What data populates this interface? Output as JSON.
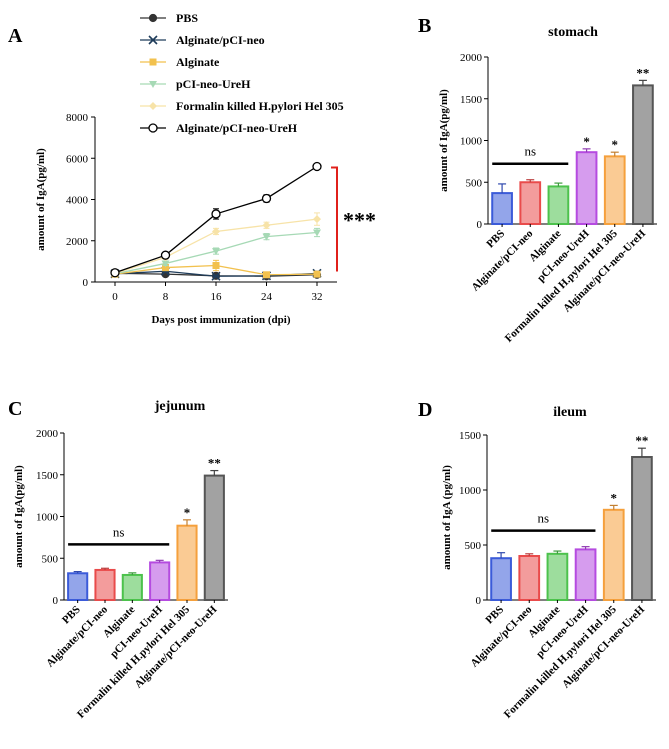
{
  "chart_data": [
    {
      "panel": "A",
      "type": "line",
      "title": "",
      "xlabel": "Days post immunization (dpi)",
      "ylabel": "amount of IgA(pg/ml)",
      "x": [
        0,
        8,
        16,
        24,
        32
      ],
      "xticks": [
        "0",
        "8",
        "16",
        "24",
        "32"
      ],
      "yticks": [
        "0",
        "2000",
        "4000",
        "6000",
        "8000"
      ],
      "ylim": [
        0,
        8000
      ],
      "annotation": "***",
      "series": [
        {
          "name": "PBS",
          "values": [
            420,
            380,
            300,
            280,
            350
          ],
          "errors": [
            40,
            40,
            40,
            40,
            40
          ],
          "color": "#333333",
          "marker": "filled-circle"
        },
        {
          "name": "Alginate/pCI-neo",
          "values": [
            400,
            520,
            280,
            300,
            420
          ],
          "errors": [
            40,
            60,
            40,
            40,
            40
          ],
          "color": "#1f3c5a",
          "marker": "x"
        },
        {
          "name": "Alginate",
          "values": [
            380,
            700,
            800,
            350,
            380
          ],
          "errors": [
            40,
            150,
            250,
            60,
            40
          ],
          "color": "#f2c14e",
          "marker": "square"
        },
        {
          "name": "pCI-neo-UreH",
          "values": [
            400,
            900,
            1500,
            2200,
            2400
          ],
          "errors": [
            40,
            100,
            150,
            150,
            200
          ],
          "color": "#a6d9b5",
          "marker": "triangle-down"
        },
        {
          "name": "Formalin killed H.pylori Hel 305",
          "values": [
            420,
            1200,
            2450,
            2750,
            3050
          ],
          "errors": [
            40,
            100,
            150,
            150,
            300
          ],
          "color": "#f7e3a8",
          "marker": "diamond"
        },
        {
          "name": "Alginate/pCI-neo-UreH",
          "values": [
            450,
            1300,
            3300,
            4050,
            5600
          ],
          "errors": [
            40,
            80,
            250,
            180,
            120
          ],
          "color": "#000000",
          "marker": "open-circle"
        }
      ]
    },
    {
      "panel": "B",
      "type": "bar",
      "title": "stomach",
      "xlabel": "",
      "ylabel": "amount of IgA(pg/ml)",
      "categories": [
        "PBS",
        "Alginate/pCI-neo",
        "Alginate",
        "pCI-neo-UreH",
        "Formalin killed H.pylori Hel 305",
        "Alginate/pCI-neo-UreH"
      ],
      "values": [
        370,
        500,
        450,
        860,
        810,
        1660
      ],
      "errors": [
        110,
        30,
        40,
        40,
        50,
        60
      ],
      "colors": [
        "#3b5bd9",
        "#e94b4b",
        "#4cc24c",
        "#b54be0",
        "#f5a03c",
        "#555555"
      ],
      "significance": [
        "",
        "",
        "",
        "*",
        "*",
        "**"
      ],
      "ns_label": "ns",
      "yticks": [
        "0",
        "500",
        "1000",
        "1500",
        "2000"
      ],
      "ylim": [
        0,
        2000
      ]
    },
    {
      "panel": "C",
      "type": "bar",
      "title": "jejunum",
      "xlabel": "",
      "ylabel": "amount of IgA(pg/ml)",
      "categories": [
        "PBS",
        "Alginate/pCI-neo",
        "Alginate",
        "pCI-neo-UreH",
        "Formalin killed H.pylori Hel 305",
        "Alginate/pCI-neo-UreH"
      ],
      "values": [
        320,
        360,
        300,
        450,
        890,
        1490
      ],
      "errors": [
        20,
        20,
        25,
        25,
        70,
        60
      ],
      "colors": [
        "#3b5bd9",
        "#e94b4b",
        "#4cc24c",
        "#b54be0",
        "#f5a03c",
        "#555555"
      ],
      "significance": [
        "",
        "",
        "",
        "",
        "*",
        "**"
      ],
      "ns_label": "ns",
      "yticks": [
        "0",
        "500",
        "1000",
        "1500",
        "2000"
      ],
      "ylim": [
        0,
        2000
      ]
    },
    {
      "panel": "D",
      "type": "bar",
      "title": "ileum",
      "xlabel": "",
      "ylabel": "amount of IgA (pg/ml)",
      "categories": [
        "PBS",
        "Alginate/pCI-neo",
        "Alginate",
        "pCI-neo-UreH",
        "Formalin killed H.pylori Hel 305",
        "Alginate/pCI-neo-UreH"
      ],
      "values": [
        380,
        400,
        420,
        460,
        820,
        1300
      ],
      "errors": [
        50,
        20,
        25,
        25,
        40,
        80
      ],
      "colors": [
        "#3b5bd9",
        "#e94b4b",
        "#4cc24c",
        "#b54be0",
        "#f5a03c",
        "#555555"
      ],
      "significance": [
        "",
        "",
        "",
        "",
        "*",
        "**"
      ],
      "ns_label": "ns",
      "yticks": [
        "0",
        "500",
        "1000",
        "1500"
      ],
      "ylim": [
        0,
        1500
      ]
    }
  ]
}
